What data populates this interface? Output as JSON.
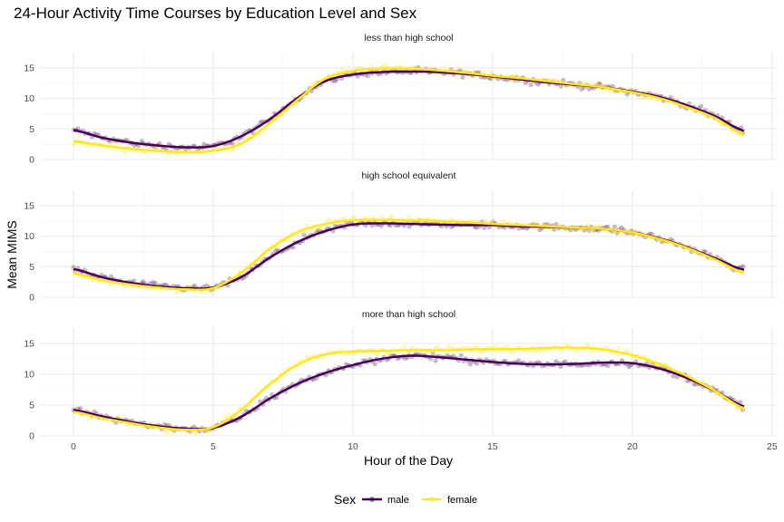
{
  "chart_data": {
    "type": "scatter",
    "title": "24-Hour Activity Time Courses by Education Level and Sex",
    "xlabel": "Hour of the Day",
    "ylabel": "Mean MIMS",
    "xlim": [
      -1.2,
      25.2
    ],
    "ylim": [
      0,
      17.5
    ],
    "xticks": [
      0,
      5,
      10,
      15,
      20,
      25
    ],
    "yticks": [
      0,
      5,
      10,
      15
    ],
    "grid": true,
    "legend": {
      "title": "Sex",
      "position": "bottom",
      "entries": [
        {
          "name": "male",
          "color": "#440154"
        },
        {
          "name": "female",
          "color": "#FDE725"
        }
      ]
    },
    "x": [
      0,
      1,
      2,
      3,
      4,
      5,
      6,
      7,
      8,
      9,
      10,
      11,
      12,
      13,
      14,
      15,
      16,
      17,
      18,
      19,
      20,
      21,
      22,
      23,
      24
    ],
    "panels": [
      {
        "label": "less than high school",
        "series": [
          {
            "name": "male",
            "values": [
              4.8,
              3.6,
              2.8,
              2.3,
              2.0,
              2.2,
              3.8,
              6.5,
              10.0,
              12.8,
              13.9,
              14.3,
              14.4,
              14.3,
              14.0,
              13.6,
              13.1,
              12.6,
              12.2,
              11.8,
              11.1,
              10.2,
              8.8,
              7.0,
              4.7
            ]
          },
          {
            "name": "female",
            "values": [
              3.0,
              2.3,
              1.8,
              1.4,
              1.2,
              1.4,
              2.6,
              5.8,
              9.7,
              13.2,
              14.5,
              14.9,
              14.9,
              14.6,
              14.2,
              13.7,
              13.3,
              12.8,
              12.3,
              11.8,
              11.0,
              10.0,
              8.5,
              6.7,
              4.0
            ]
          }
        ]
      },
      {
        "label": "high school equivalent",
        "series": [
          {
            "name": "male",
            "values": [
              4.6,
              3.3,
              2.4,
              1.8,
              1.5,
              1.6,
              3.3,
              6.4,
              9.0,
              10.8,
              11.9,
              12.1,
              12.0,
              11.9,
              11.8,
              11.8,
              11.6,
              11.5,
              11.4,
              11.2,
              10.6,
              9.6,
              8.1,
              6.3,
              4.5
            ]
          },
          {
            "name": "female",
            "values": [
              3.9,
              2.8,
              2.1,
              1.6,
              1.3,
              1.5,
              4.0,
              7.8,
              10.6,
              12.0,
              12.6,
              12.7,
              12.6,
              12.5,
              12.3,
              12.0,
              11.8,
              11.6,
              11.4,
              11.2,
              10.6,
              9.5,
              8.0,
              6.1,
              4.0
            ]
          }
        ]
      },
      {
        "label": "more than high school",
        "series": [
          {
            "name": "male",
            "values": [
              4.2,
              3.2,
              2.3,
              1.6,
              1.2,
              1.3,
              3.1,
              6.0,
              8.4,
              10.2,
              11.5,
              12.5,
              13.0,
              12.8,
              12.4,
              12.0,
              11.7,
              11.6,
              11.7,
              11.9,
              11.8,
              10.9,
              9.3,
              7.2,
              4.8
            ]
          },
          {
            "name": "female",
            "values": [
              3.9,
              2.9,
              2.1,
              1.4,
              1.0,
              1.4,
              4.2,
              8.3,
              11.5,
              13.2,
              13.7,
              13.8,
              13.9,
              13.9,
              14.0,
              14.1,
              14.1,
              14.3,
              14.3,
              14.0,
              13.1,
              11.6,
              9.6,
              7.2,
              4.5
            ]
          }
        ]
      }
    ]
  }
}
